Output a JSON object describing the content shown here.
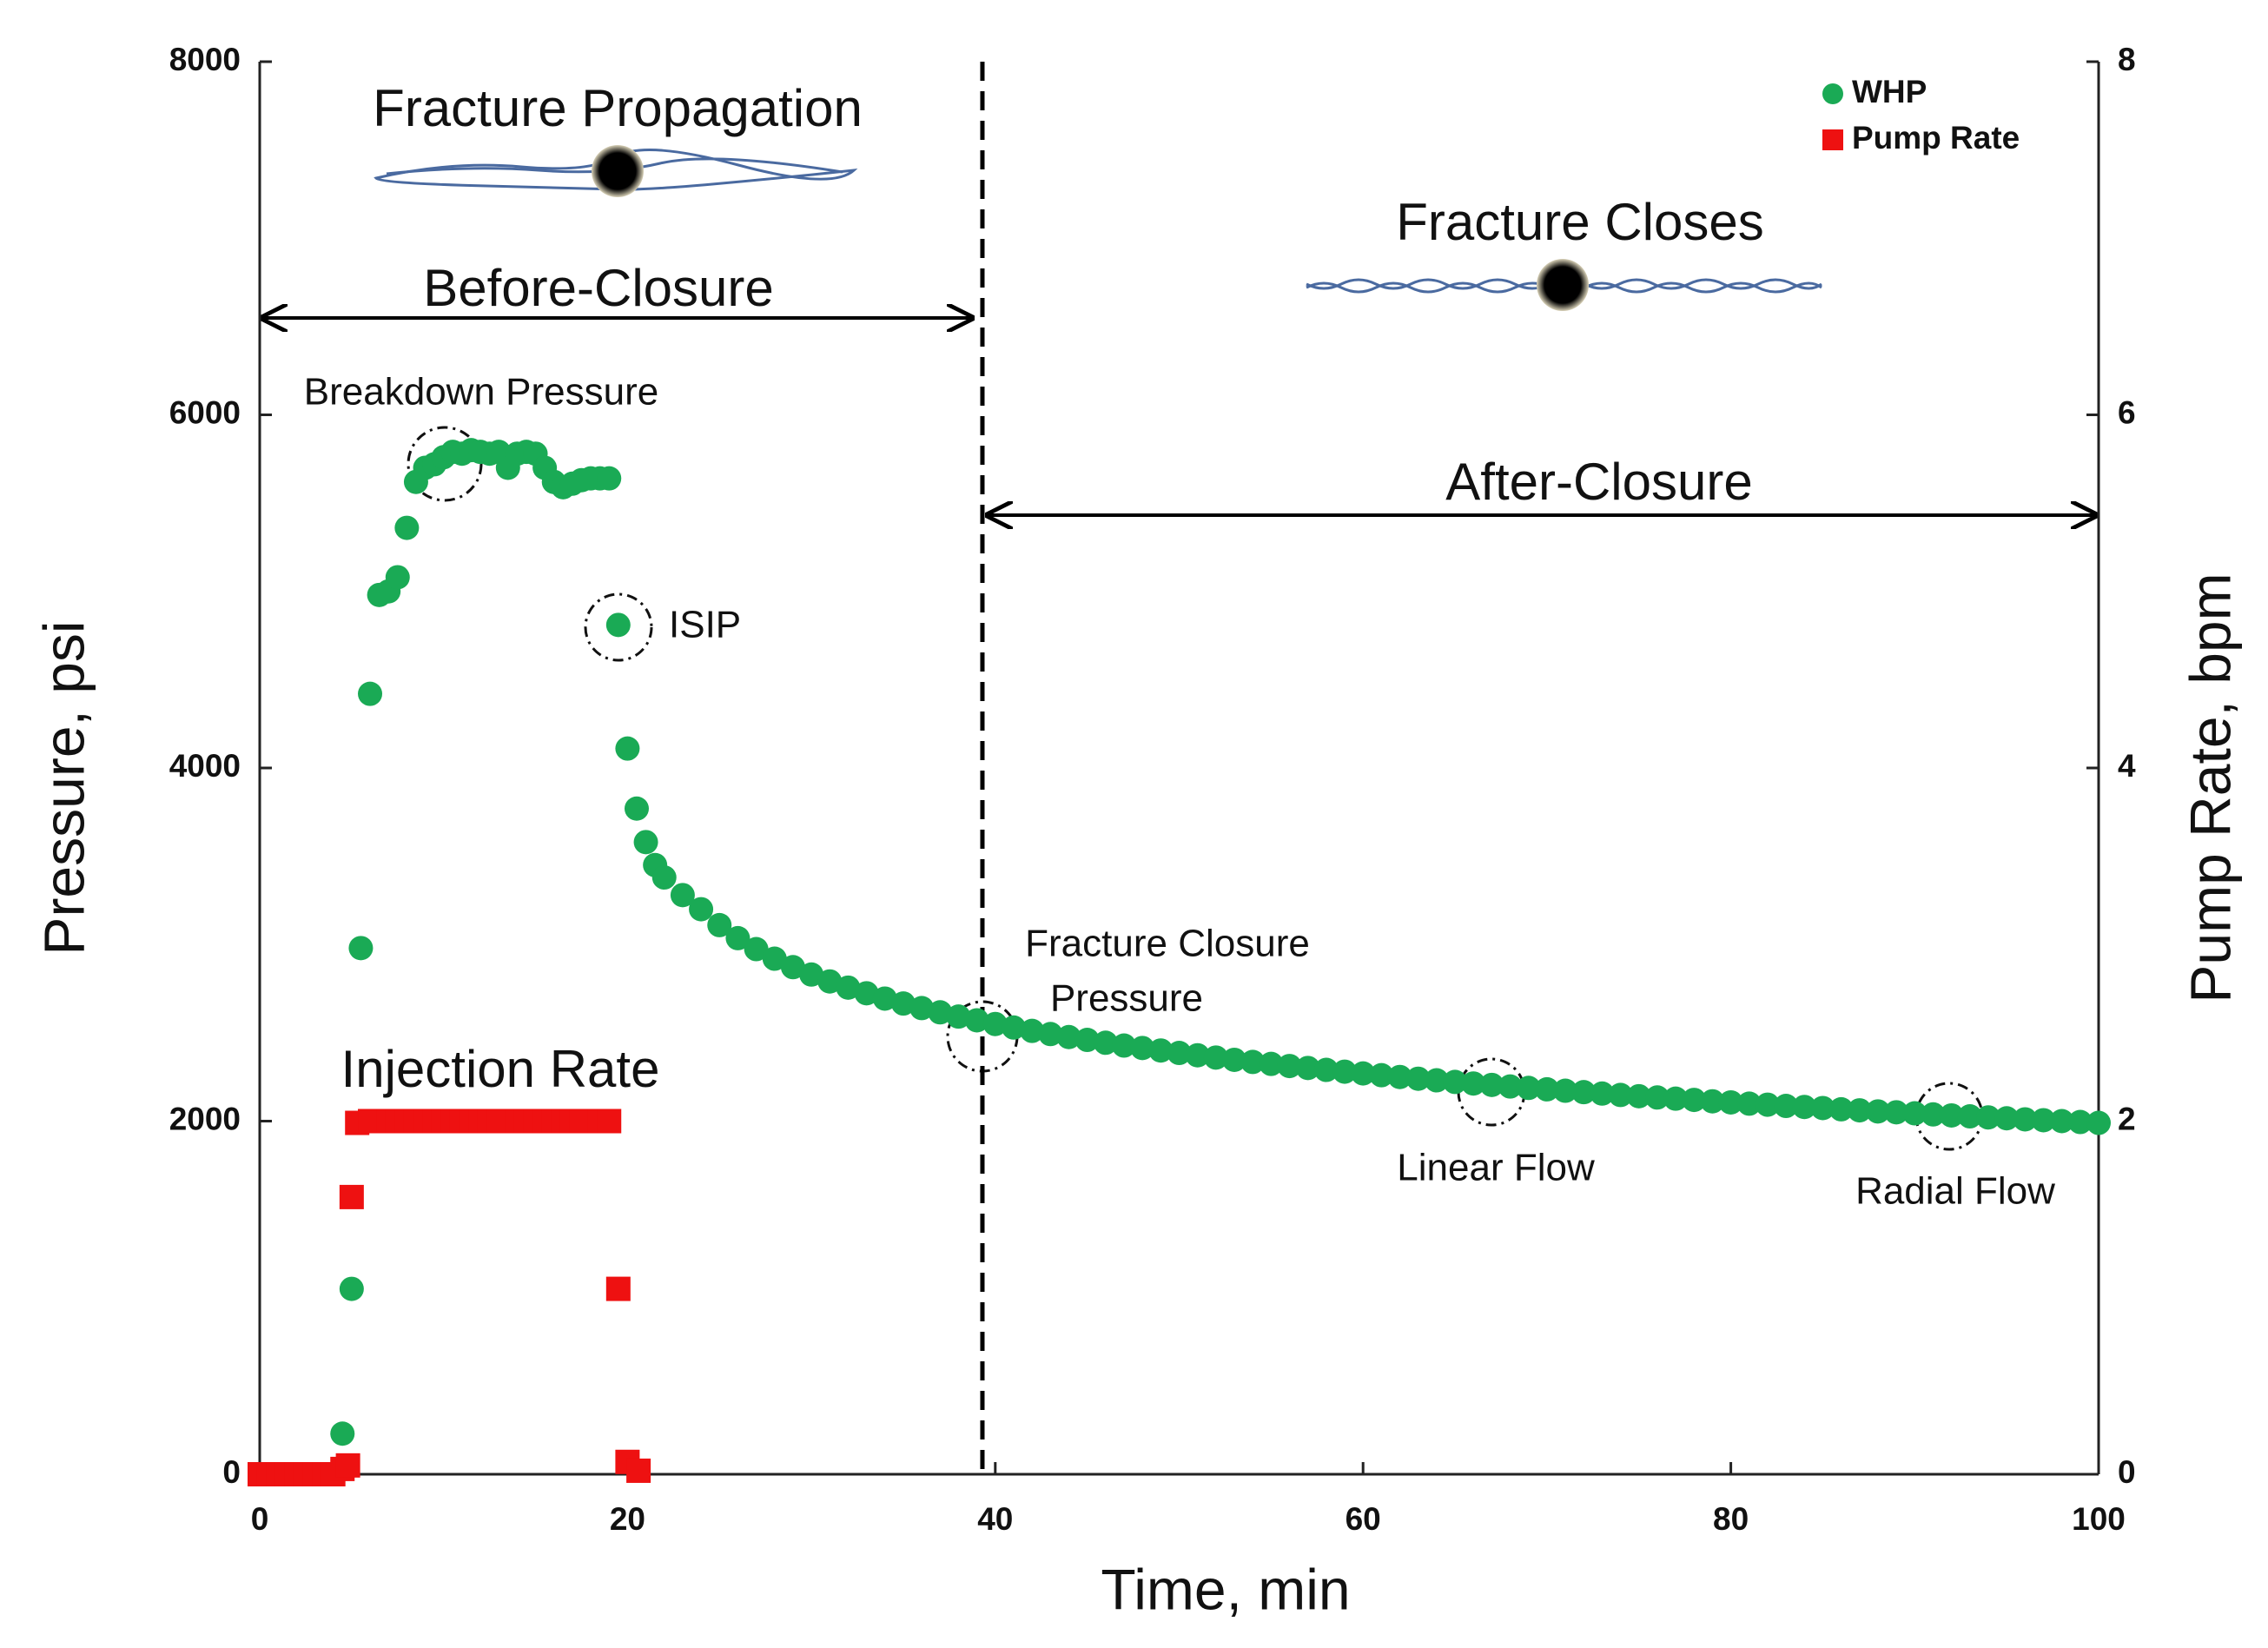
{
  "chart_data": {
    "type": "scatter",
    "xlabel": "Time, min",
    "ylabel": "Pressure, psi",
    "y2label": "Pump Rate, bpm",
    "xlim": [
      0,
      100
    ],
    "xticks": [
      0,
      20,
      40,
      60,
      80,
      100
    ],
    "ylim": [
      0,
      8000
    ],
    "yticks": [
      0,
      2000,
      4000,
      6000,
      8000
    ],
    "y2lim": [
      0,
      8
    ],
    "y2ticks": [
      0,
      2,
      4,
      6,
      8
    ],
    "legend": "upper right",
    "vlines": [
      39.3
    ],
    "annotations": {
      "propagation": "Fracture Propagation",
      "before": "Before-Closure",
      "breakdown": "Breakdown Pressure",
      "isip": "ISIP",
      "closes": "Fracture Closes",
      "after": "After-Closure",
      "closure1": "Fracture Closure",
      "closure2": "Pressure",
      "injection": "Injection Rate",
      "linear": "Linear Flow",
      "radial": "Radial Flow"
    },
    "series": [
      {
        "name": "WHP",
        "color": "#1aaa55",
        "marker": "circle",
        "axis": "y",
        "x": [
          4.5,
          5,
          5.5,
          6,
          6.5,
          7,
          7.5,
          8,
          8.5,
          9,
          9.5,
          10,
          10.5,
          11,
          11.5,
          12,
          12.5,
          13,
          13.5,
          14,
          14.5,
          15,
          15.5,
          16,
          16.5,
          17,
          17.5,
          18,
          18.5,
          19,
          19.5,
          20,
          20.5,
          21,
          21.5,
          22,
          23,
          24,
          25,
          26,
          27,
          28,
          29,
          30,
          31,
          32,
          33,
          34,
          35,
          36,
          37,
          38,
          39,
          40,
          41,
          42,
          43,
          44,
          45,
          46,
          47,
          48,
          49,
          50,
          51,
          52,
          53,
          54,
          55,
          56,
          57,
          58,
          59,
          60,
          61,
          62,
          63,
          64,
          65,
          66,
          67,
          68,
          69,
          70,
          71,
          72,
          73,
          74,
          75,
          76,
          77,
          78,
          79,
          80,
          81,
          82,
          83,
          84,
          85,
          86,
          87,
          88,
          89,
          90,
          91,
          92,
          93,
          94,
          95,
          96,
          97,
          98,
          99,
          100
        ],
        "values": [
          230,
          1050,
          2980,
          4420,
          4980,
          5000,
          5080,
          5360,
          5620,
          5700,
          5720,
          5760,
          5790,
          5780,
          5800,
          5790,
          5780,
          5790,
          5700,
          5780,
          5790,
          5780,
          5700,
          5620,
          5590,
          5610,
          5630,
          5640,
          5640,
          5640,
          4810,
          4110,
          3770,
          3580,
          3450,
          3380,
          3280,
          3200,
          3110,
          3036,
          2974,
          2920,
          2872,
          2830,
          2791,
          2756,
          2724,
          2694,
          2666,
          2640,
          2616,
          2592,
          2571,
          2550,
          2530,
          2511,
          2493,
          2476,
          2460,
          2444,
          2428,
          2414,
          2400,
          2386,
          2373,
          2360,
          2347,
          2335,
          2324,
          2312,
          2301,
          2290,
          2280,
          2270,
          2260,
          2250,
          2240,
          2231,
          2222,
          2213,
          2205,
          2196,
          2188,
          2180,
          2172,
          2164,
          2156,
          2148,
          2141,
          2134,
          2127,
          2120,
          2112,
          2106,
          2099,
          2093,
          2086,
          2080,
          2074,
          2067,
          2061,
          2055,
          2050,
          2044,
          2038,
          2032,
          2027,
          2021,
          2016,
          2010,
          2005,
          2000,
          1995,
          1990
        ]
      },
      {
        "name": "Pump Rate",
        "color": "#ee1111",
        "marker": "square",
        "axis": "y2",
        "x": [
          0,
          0.5,
          1,
          1.5,
          2,
          2.5,
          3,
          3.5,
          4,
          4.5,
          4.8,
          5,
          5.3,
          6,
          6.5,
          7,
          7.5,
          8,
          8.5,
          9,
          9.5,
          10,
          10.5,
          11,
          11.5,
          12,
          12.5,
          13,
          13.5,
          14,
          14.5,
          15,
          15.5,
          16,
          16.5,
          17,
          17.5,
          18,
          18.5,
          19,
          19.5,
          20,
          20.6
        ],
        "values": [
          0,
          0,
          0,
          0,
          0,
          0,
          0,
          0,
          0,
          0.03,
          0.05,
          1.57,
          1.99,
          2,
          2,
          2,
          2,
          2,
          2,
          2,
          2,
          2,
          2,
          2,
          2,
          2,
          2,
          2,
          2,
          2,
          2,
          2,
          2,
          2,
          2,
          2,
          2,
          2,
          2,
          2,
          1.05,
          0.07,
          0.02
        ]
      }
    ]
  }
}
